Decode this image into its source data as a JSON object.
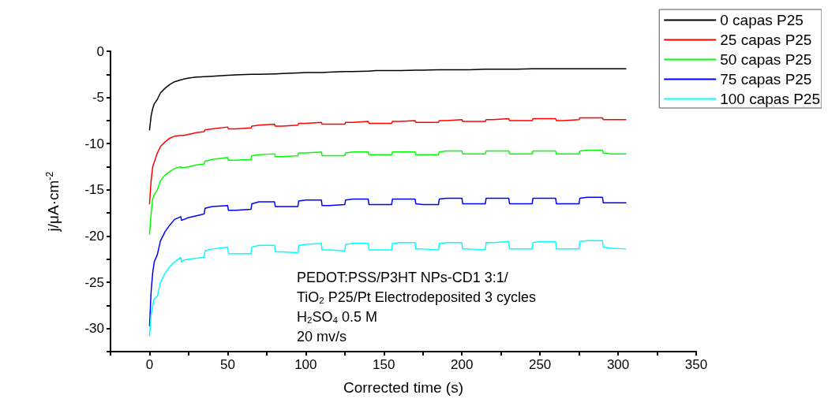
{
  "chart_data": {
    "type": "line",
    "xlabel": "Corrected time (s)",
    "ylabel": "j/μA·cm$^{-2}$",
    "x": [
      0,
      1,
      2,
      3,
      5,
      7,
      10,
      13,
      16,
      20,
      20.5,
      22,
      25,
      30,
      35,
      35.5,
      40,
      50,
      50.5,
      55,
      65,
      65.5,
      70,
      80,
      80.5,
      85,
      95,
      95.5,
      100,
      110,
      110.5,
      115,
      125,
      125.5,
      130,
      140,
      140.5,
      145,
      155,
      155.5,
      160,
      170,
      170.5,
      175,
      185,
      185.5,
      190,
      200,
      200.5,
      205,
      215,
      215.5,
      220,
      230,
      230.5,
      235,
      245,
      245.5,
      250,
      260,
      260.5,
      265,
      275,
      275.5,
      280,
      290,
      290.5,
      295,
      305
    ],
    "series": [
      {
        "name": "0 capas P25",
        "color": "#000000",
        "values": [
          -8.5,
          -7,
          -6.2,
          -5.7,
          -5.2,
          -4.5,
          -4,
          -3.6,
          -3.3,
          -3.1,
          -3.1,
          -3,
          -2.9,
          -2.8,
          -2.75,
          -2.75,
          -2.7,
          -2.6,
          -2.6,
          -2.55,
          -2.5,
          -2.5,
          -2.5,
          -2.45,
          -2.45,
          -2.4,
          -2.35,
          -2.35,
          -2.3,
          -2.3,
          -2.3,
          -2.25,
          -2.2,
          -2.2,
          -2.2,
          -2.15,
          -2.15,
          -2.1,
          -2.1,
          -2.1,
          -2.1,
          -2.05,
          -2.05,
          -2.05,
          -2,
          -2,
          -2,
          -2,
          -2,
          -2,
          -1.95,
          -1.95,
          -1.95,
          -1.95,
          -1.95,
          -1.95,
          -1.9,
          -1.9,
          -1.9,
          -1.9,
          -1.9,
          -1.9,
          -1.9,
          -1.9,
          -1.9,
          -1.9,
          -1.9,
          -1.9,
          -1.9
        ]
      },
      {
        "name": "25 capas P25",
        "color": "#ff0000",
        "values": [
          -16.5,
          -14,
          -12.5,
          -12,
          -11,
          -10.3,
          -9.8,
          -9.4,
          -9.2,
          -9.1,
          -9.1,
          -9.1,
          -9,
          -8.8,
          -8.7,
          -8.5,
          -8.4,
          -8.2,
          -8.4,
          -8.4,
          -8.3,
          -8.1,
          -8,
          -7.9,
          -8.1,
          -8.1,
          -8,
          -7.8,
          -7.8,
          -7.7,
          -7.9,
          -7.9,
          -7.9,
          -7.7,
          -7.7,
          -7.6,
          -7.8,
          -7.8,
          -7.8,
          -7.6,
          -7.6,
          -7.5,
          -7.7,
          -7.7,
          -7.7,
          -7.5,
          -7.5,
          -7.4,
          -7.6,
          -7.6,
          -7.6,
          -7.4,
          -7.4,
          -7.3,
          -7.5,
          -7.5,
          -7.5,
          -7.3,
          -7.3,
          -7.3,
          -7.5,
          -7.5,
          -7.4,
          -7.2,
          -7.2,
          -7.2,
          -7.4,
          -7.4,
          -7.4
        ]
      },
      {
        "name": "50 capas P25",
        "color": "#00ff00",
        "values": [
          -19.8,
          -17.5,
          -16,
          -15.5,
          -15,
          -14,
          -13.4,
          -13,
          -12.7,
          -12.5,
          -12.6,
          -12.6,
          -12.5,
          -12.3,
          -12.2,
          -11.9,
          -11.7,
          -11.5,
          -11.8,
          -11.8,
          -11.7,
          -11.3,
          -11.2,
          -11.1,
          -11.4,
          -11.4,
          -11.3,
          -11,
          -11,
          -10.9,
          -11.3,
          -11.3,
          -11.3,
          -11,
          -10.9,
          -10.9,
          -11.2,
          -11.2,
          -11.2,
          -10.9,
          -10.9,
          -10.9,
          -11.2,
          -11.2,
          -11.2,
          -10.9,
          -10.8,
          -10.8,
          -11.1,
          -11.1,
          -11.1,
          -10.8,
          -10.8,
          -10.8,
          -11.1,
          -11.1,
          -11.1,
          -10.8,
          -10.8,
          -10.8,
          -11.1,
          -11.1,
          -11.1,
          -10.8,
          -10.7,
          -10.7,
          -11,
          -11.1,
          -11.1
        ]
      },
      {
        "name": "75 capas P25",
        "color": "#0000ff",
        "values": [
          -29.7,
          -26,
          -24,
          -22.8,
          -22,
          -20.5,
          -19.5,
          -18.8,
          -18.2,
          -17.9,
          -18.3,
          -18.2,
          -18,
          -17.8,
          -17.6,
          -17,
          -16.8,
          -16.7,
          -17.2,
          -17.2,
          -17.1,
          -16.5,
          -16.3,
          -16.3,
          -16.8,
          -16.8,
          -16.8,
          -16.2,
          -16.1,
          -16.1,
          -16.7,
          -16.7,
          -16.6,
          -16.1,
          -16,
          -16,
          -16.6,
          -16.6,
          -16.6,
          -16,
          -16,
          -16,
          -16.5,
          -16.6,
          -16.6,
          -16,
          -15.9,
          -15.9,
          -16.5,
          -16.5,
          -16.5,
          -15.9,
          -15.9,
          -15.9,
          -16.5,
          -16.5,
          -16.5,
          -15.9,
          -15.9,
          -15.9,
          -16.5,
          -16.5,
          -16.5,
          -15.9,
          -15.8,
          -15.8,
          -16.4,
          -16.4,
          -16.4
        ]
      },
      {
        "name": "100 capas P25",
        "color": "#00ffff",
        "values": [
          -30.8,
          -28.5,
          -27.5,
          -26.8,
          -26.5,
          -25,
          -24,
          -23.3,
          -22.8,
          -22.3,
          -22.8,
          -22.6,
          -22.5,
          -22.4,
          -22.3,
          -21.6,
          -21.4,
          -21.2,
          -21.9,
          -21.9,
          -21.9,
          -21.2,
          -21,
          -21,
          -21.7,
          -21.7,
          -21.8,
          -21,
          -20.9,
          -20.8,
          -21.5,
          -21.5,
          -21.6,
          -20.9,
          -20.8,
          -20.8,
          -21.5,
          -21.5,
          -21.5,
          -20.8,
          -20.7,
          -20.7,
          -21.4,
          -21.4,
          -21.5,
          -20.8,
          -20.7,
          -20.7,
          -21.4,
          -21.4,
          -21.5,
          -20.7,
          -20.7,
          -20.6,
          -21.4,
          -21.4,
          -21.4,
          -20.7,
          -20.6,
          -20.6,
          -21.4,
          -21.4,
          -21.4,
          -20.6,
          -20.5,
          -20.5,
          -21.2,
          -21.3,
          -21.4
        ]
      }
    ],
    "xlim": [
      -25,
      350
    ],
    "xticks": [
      {
        "value": -25,
        "label": null
      },
      0,
      {
        "value": 25,
        "label": null
      },
      50,
      {
        "value": 75,
        "label": null
      },
      100,
      {
        "value": 125,
        "label": null
      },
      150,
      {
        "value": 175,
        "label": null
      },
      200,
      {
        "value": 225,
        "label": null
      },
      250,
      {
        "value": 275,
        "label": null
      },
      300,
      {
        "value": 325,
        "label": null
      },
      350
    ],
    "ylim": [
      -32.5,
      0
    ],
    "yticks": [
      {
        "value": -32.5,
        "label": null
      },
      -30,
      {
        "value": -27.5,
        "label": null
      },
      -25,
      {
        "value": -22.5,
        "label": null
      },
      -20,
      {
        "value": -17.5,
        "label": null
      },
      -15,
      {
        "value": -12.5,
        "label": null
      },
      -10,
      {
        "value": -7.5,
        "label": null
      },
      -5,
      {
        "value": -2.5,
        "label": null
      },
      0
    ],
    "grid": false,
    "legend": "top right",
    "marker": "none",
    "line_style": "solid",
    "annotations": [
      "PEDOT:PSS/P3HT NPs-CD1 3:1/",
      "TiO$_{2}$ P25/Pt Electrodeposited 3 cycles",
      "H$_{2}$SO$_{4}$ 0.5 M",
      "20 mv/s"
    ]
  }
}
